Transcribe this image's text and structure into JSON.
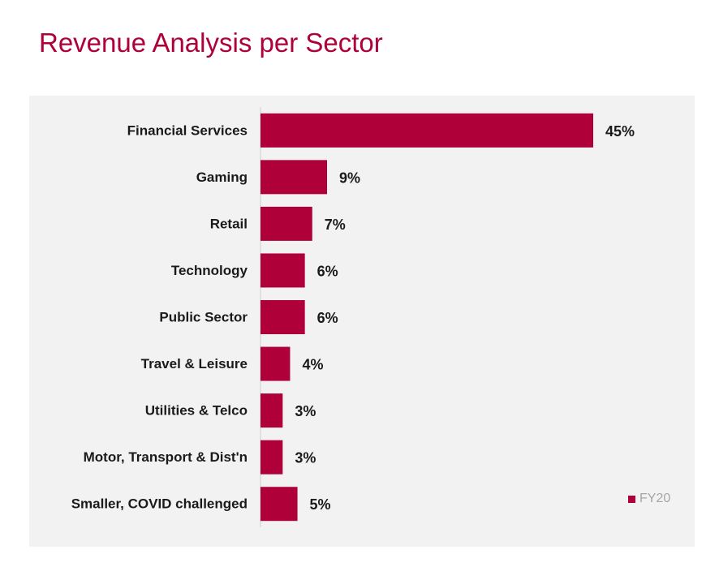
{
  "page": {
    "title": "Revenue Analysis per Sector"
  },
  "colors": {
    "accent": "#b0003a",
    "panel_bg": "#f2f2f2",
    "legend_text": "#a6a6a6"
  },
  "chart_data": {
    "type": "bar",
    "orientation": "horizontal",
    "title": "Revenue Analysis per Sector",
    "xlabel": "",
    "ylabel": "",
    "categories": [
      "Financial Services",
      "Gaming",
      "Retail",
      "Technology",
      "Public Sector",
      "Travel & Leisure",
      "Utilities & Telco",
      "Motor, Transport & Dist'n",
      "Smaller, COVID challenged"
    ],
    "series": [
      {
        "name": "FY20",
        "values": [
          45,
          9,
          7,
          6,
          6,
          4,
          3,
          3,
          5
        ],
        "labels": [
          "45%",
          "9%",
          "7%",
          "6%",
          "6%",
          "4%",
          "3%",
          "3%",
          "5%"
        ],
        "color": "#b0003a"
      }
    ],
    "xlim": [
      0,
      45
    ],
    "grid": false,
    "legend": {
      "position": "bottom-right",
      "entries": [
        "FY20"
      ]
    }
  }
}
